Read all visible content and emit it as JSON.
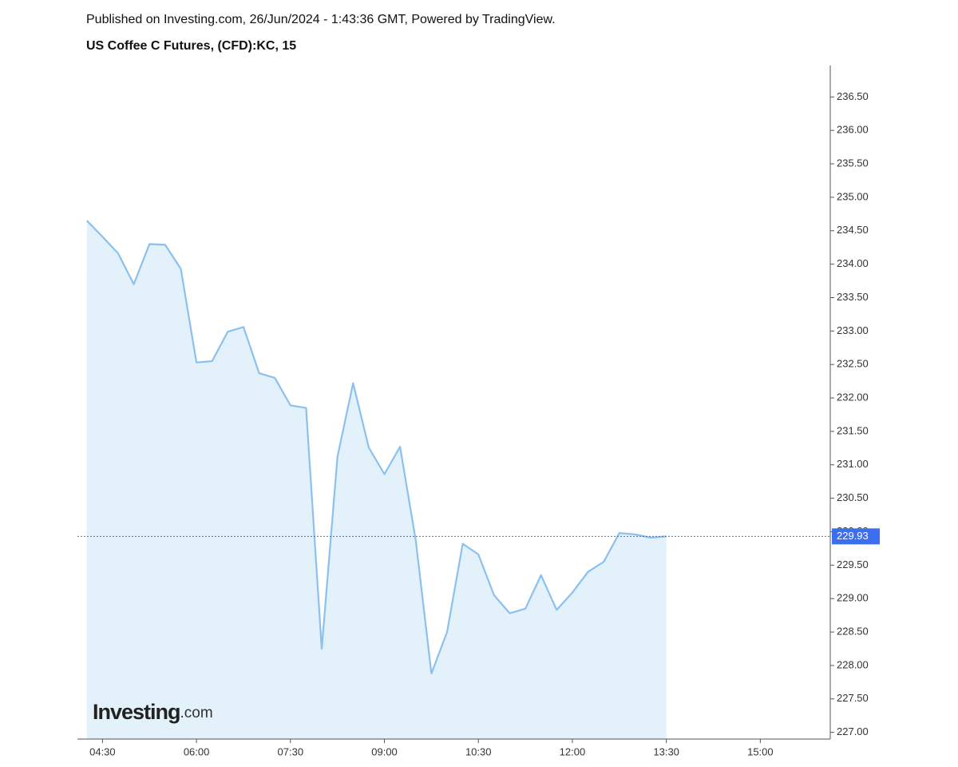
{
  "published": "Published on Investing.com, 26/Jun/2024 - 1:43:36 GMT, Powered by TradingView.",
  "logo": {
    "name": "Investing",
    "suffix": ".com"
  },
  "chart_data": {
    "type": "area",
    "title": "US Coffee C Futures, (CFD):KC, 15",
    "x": [
      "04:15",
      "04:30",
      "04:45",
      "05:00",
      "05:15",
      "05:30",
      "05:45",
      "06:00",
      "06:15",
      "06:30",
      "06:45",
      "07:00",
      "07:15",
      "07:30",
      "07:45",
      "08:00",
      "08:15",
      "08:30",
      "08:45",
      "09:00",
      "09:15",
      "09:30",
      "09:45",
      "10:00",
      "10:15",
      "10:30",
      "10:45",
      "11:00",
      "11:15",
      "11:30",
      "11:45",
      "12:00",
      "12:15",
      "12:30",
      "12:45",
      "13:00",
      "13:15",
      "13:30"
    ],
    "values": [
      234.65,
      234.41,
      234.16,
      233.7,
      234.3,
      234.29,
      233.93,
      232.53,
      232.55,
      232.99,
      233.06,
      232.37,
      232.3,
      231.89,
      231.85,
      228.25,
      231.12,
      232.22,
      231.26,
      230.86,
      231.27,
      229.87,
      227.88,
      228.5,
      229.82,
      229.66,
      229.05,
      228.78,
      228.85,
      229.35,
      228.83,
      229.09,
      229.4,
      229.55,
      229.98,
      229.96,
      229.91,
      229.93
    ],
    "color": "#8cc0ee",
    "fill_color": "#e3f1fb",
    "last_value": 229.93,
    "last_color": "#3b6ff0",
    "xlim": [
      "04:06",
      "16:07"
    ],
    "xticks": [
      "04:30",
      "06:00",
      "07:30",
      "09:00",
      "10:30",
      "12:00",
      "13:30",
      "15:00"
    ],
    "ylim": [
      226.9,
      236.97
    ],
    "yticks": [
      {
        "value": 227,
        "label": "227.00"
      },
      {
        "value": 227.5,
        "label": "227.50"
      },
      {
        "value": 228,
        "label": "228.00"
      },
      {
        "value": 228.5,
        "label": "228.50"
      },
      {
        "value": 229,
        "label": "229.00"
      },
      {
        "value": 229.5,
        "label": "229.50"
      },
      {
        "value": 230,
        "label": "230.00"
      },
      {
        "value": 230.5,
        "label": "230.50"
      },
      {
        "value": 231,
        "label": "231.00"
      },
      {
        "value": 231.5,
        "label": "231.50"
      },
      {
        "value": 232,
        "label": "232.00"
      },
      {
        "value": 232.5,
        "label": "232.50"
      },
      {
        "value": 233,
        "label": "233.00"
      },
      {
        "value": 233.5,
        "label": "233.50"
      },
      {
        "value": 234,
        "label": "234.00"
      },
      {
        "value": 234.5,
        "label": "234.50"
      },
      {
        "value": 235,
        "label": "235.00"
      },
      {
        "value": 235.5,
        "label": "235.50"
      },
      {
        "value": 236,
        "label": "236.00"
      },
      {
        "value": 236.5,
        "label": "236.50"
      }
    ]
  }
}
